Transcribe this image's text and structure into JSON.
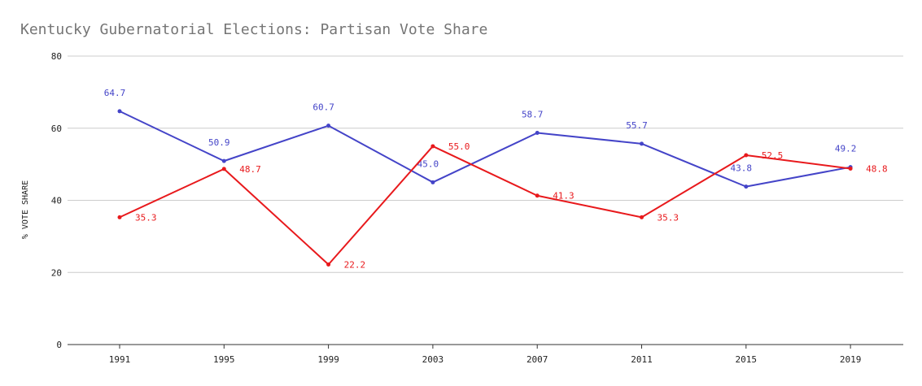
{
  "chart_data": {
    "type": "line",
    "title": "Kentucky Gubernatorial Elections: Partisan Vote Share",
    "xlabel": "",
    "ylabel": "% VOTE SHARE",
    "categories": [
      "1991",
      "1995",
      "1999",
      "2003",
      "2007",
      "2011",
      "2015",
      "2019"
    ],
    "ylim": [
      0,
      80
    ],
    "yticks": [
      0,
      20,
      40,
      60,
      80
    ],
    "grid": true,
    "legend": "none",
    "series": [
      {
        "color": "#4444c8",
        "values": [
          64.7,
          50.9,
          60.7,
          45.0,
          58.7,
          55.7,
          43.8,
          49.2
        ],
        "labels": [
          "64.7",
          "50.9",
          "60.7",
          "45.0",
          "58.7",
          "55.7",
          "43.8",
          "49.2"
        ]
      },
      {
        "color": "#e8191c",
        "values": [
          35.3,
          48.7,
          22.2,
          55.0,
          41.3,
          35.3,
          52.5,
          48.8
        ],
        "labels": [
          "35.3",
          "48.7",
          "22.2",
          "55.0",
          "41.3",
          "35.3",
          "52.5",
          "48.8"
        ]
      }
    ]
  }
}
